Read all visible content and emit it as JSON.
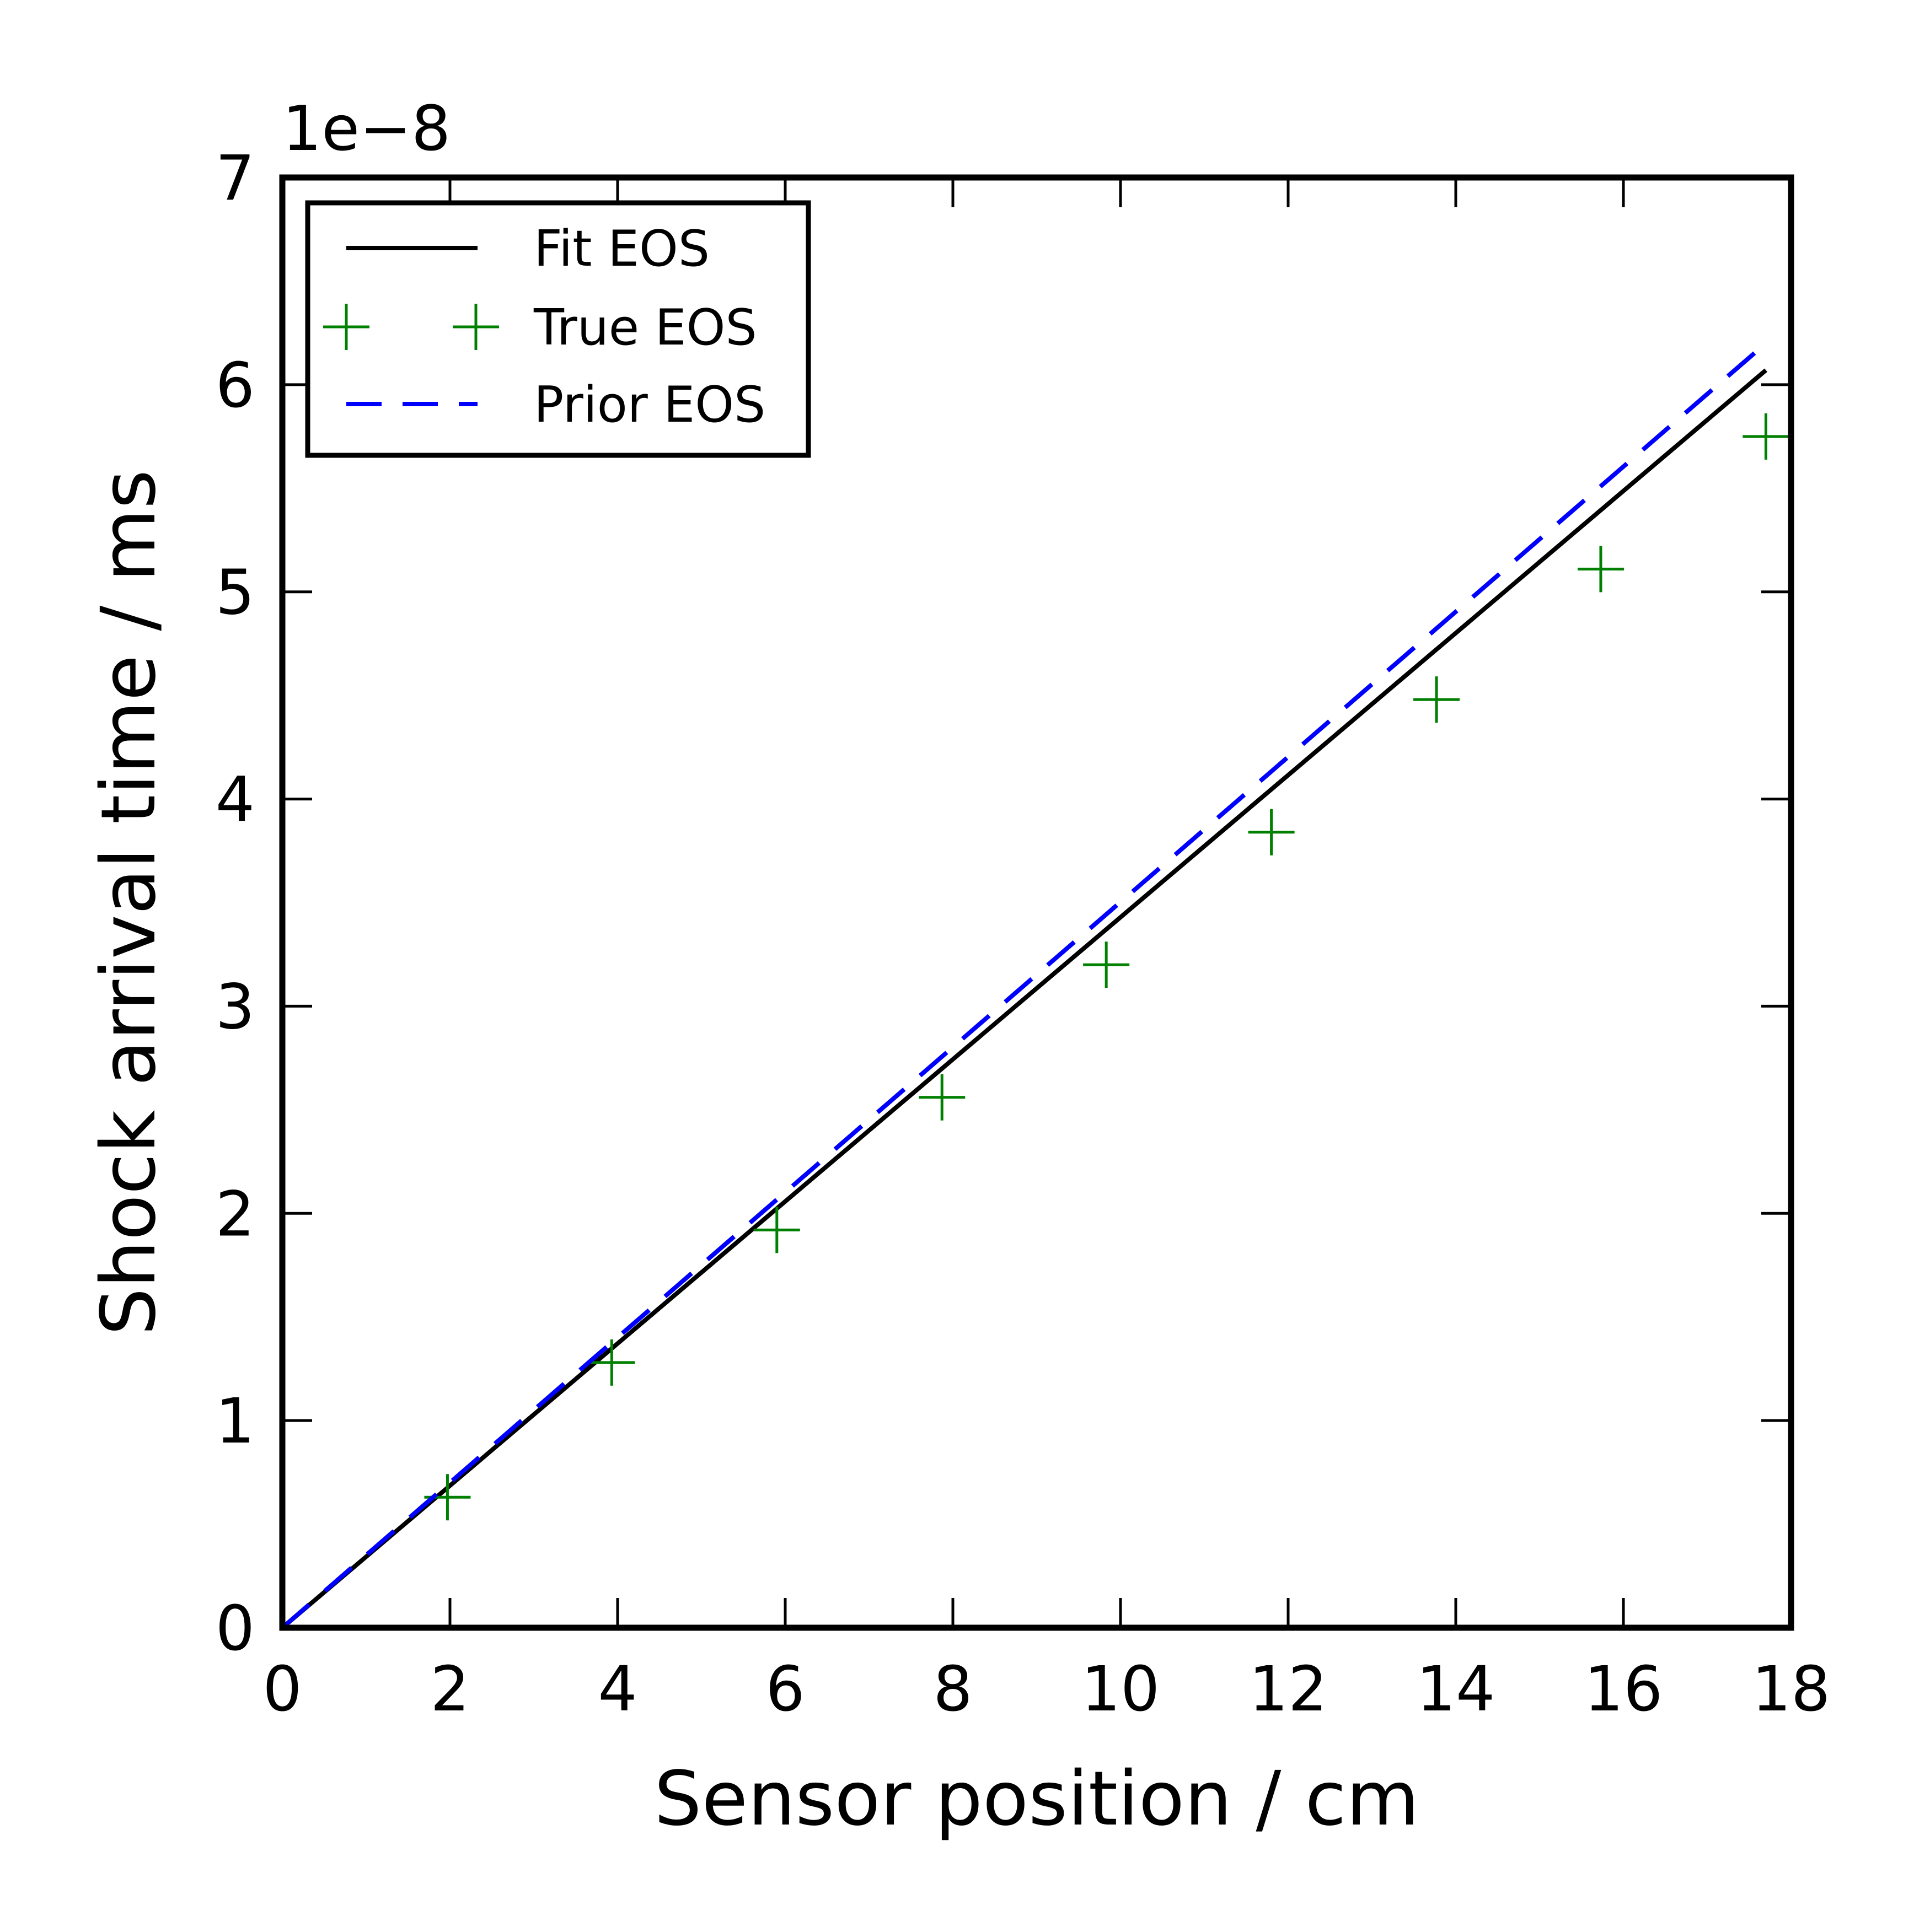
{
  "chart_data": {
    "type": "line",
    "xlabel": "Sensor position / cm",
    "ylabel": "Shock arrival time / ms",
    "offset_text": "1e−8",
    "xlim": [
      0,
      18
    ],
    "ylim": [
      0,
      7
    ],
    "xticks": [
      0,
      2,
      4,
      6,
      8,
      10,
      12,
      14,
      16,
      18
    ],
    "xtick_labels": [
      "0",
      "2",
      "4",
      "6",
      "8",
      "10",
      "12",
      "14",
      "16",
      "18"
    ],
    "yticks": [
      0,
      1,
      2,
      3,
      4,
      5,
      6,
      7
    ],
    "ytick_labels": [
      "0",
      "1",
      "2",
      "3",
      "4",
      "5",
      "6",
      "7"
    ],
    "grid": false,
    "legend_position": "top-left",
    "series": [
      {
        "name": "Fit EOS",
        "style": "solid",
        "marker": "none",
        "color": "#000000",
        "x": [
          0,
          17.7
        ],
        "y": [
          0,
          6.07
        ]
      },
      {
        "name": "True EOS",
        "style": "none",
        "marker": "+",
        "color": "#008000",
        "x": [
          1.97,
          3.93,
          5.9,
          7.87,
          9.83,
          11.8,
          13.77,
          15.73,
          17.7
        ],
        "y": [
          0.63,
          1.28,
          1.92,
          2.56,
          3.2,
          3.84,
          4.48,
          5.11,
          5.75
        ]
      },
      {
        "name": "Prior EOS",
        "style": "dashed",
        "marker": "none",
        "color": "#0000ff",
        "x": [
          0,
          17.7
        ],
        "y": [
          0,
          6.2
        ]
      }
    ]
  }
}
